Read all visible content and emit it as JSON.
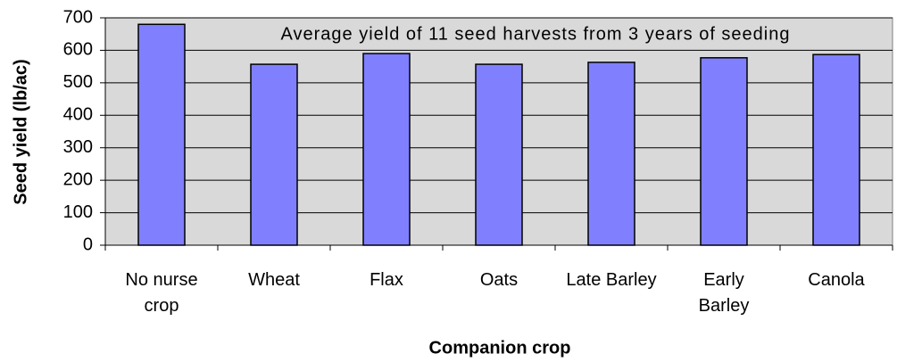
{
  "chart_data": {
    "type": "bar",
    "annotation": "Average yield of 11 seed harvests from 3 years of seeding",
    "x_label": "Companion crop",
    "y_label": "Seed yield (lb/ac)",
    "categories": [
      "No nurse crop",
      "Wheat",
      "Flax",
      "Oats",
      "Late Barley",
      "Early Barley",
      "Canola"
    ],
    "values": [
      680,
      557,
      590,
      557,
      563,
      577,
      587
    ],
    "color": "#8080ff",
    "ylim": [
      0,
      700
    ],
    "yticks": [
      0,
      100,
      200,
      300,
      400,
      500,
      600,
      700
    ],
    "grid": true
  }
}
